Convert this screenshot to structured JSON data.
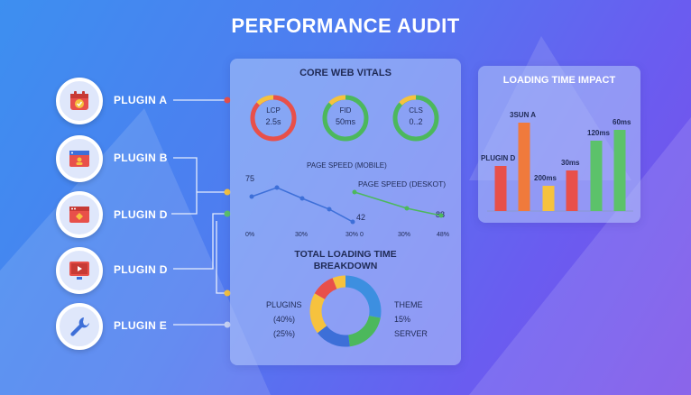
{
  "title": "PERFORMANCE AUDIT",
  "plugins": [
    {
      "label": "PLUGIN A",
      "icon": "calendar-check-icon"
    },
    {
      "label": "PLUGIN B",
      "icon": "browser-user-icon"
    },
    {
      "label": "PLUGIN D",
      "icon": "browser-window-icon"
    },
    {
      "label": "PLUGIN D",
      "icon": "monitor-play-icon"
    },
    {
      "label": "PLUGIN E",
      "icon": "wrench-icon"
    }
  ],
  "core_vitals": {
    "title": "CORE WEB VITALS",
    "gauges": [
      {
        "name": "LCP",
        "value": "2.5s",
        "color": "#e8504a"
      },
      {
        "name": "FID",
        "value": "50ms",
        "color": "#4cb85c"
      },
      {
        "name": "CLS",
        "value": "0..2",
        "color": "#4cb85c"
      }
    ]
  },
  "page_speed": {
    "mobile_label": "PAGE SPEED (MOBILE)",
    "desktop_label": "PAGE SPEED (DESKOT)",
    "mobile_start": "75",
    "mobile_end": "42",
    "desktop_end": "88",
    "ticks": [
      "0%",
      "30%",
      "30% 0",
      "30%",
      "48%"
    ]
  },
  "breakdown": {
    "title_line1": "TOTAL LOADING TIME",
    "title_line2": "BREAKDOWN",
    "left_labels": [
      "PLUGINS",
      "(40%)",
      "(25%)"
    ],
    "right_labels": [
      "THEME",
      "15%",
      "SERVER"
    ]
  },
  "loading_impact": {
    "title": "LOADING TIME IMPACT",
    "labels": [
      "PLUGIN D",
      "3SUN A",
      "200ms",
      "30ms",
      "120ms",
      "60ms"
    ]
  },
  "chart_data": {
    "type": "bar",
    "title": "LOADING TIME IMPACT",
    "categories": [
      "PLUGIN D",
      "3SUN A",
      "200ms",
      "30ms",
      "120ms",
      "60ms"
    ],
    "values": [
      50,
      98,
      28,
      45,
      78,
      90
    ],
    "colors": [
      "#e8504a",
      "#f07a3c",
      "#f6c23e",
      "#e8504a",
      "#5cc26a",
      "#5cc26a"
    ]
  }
}
